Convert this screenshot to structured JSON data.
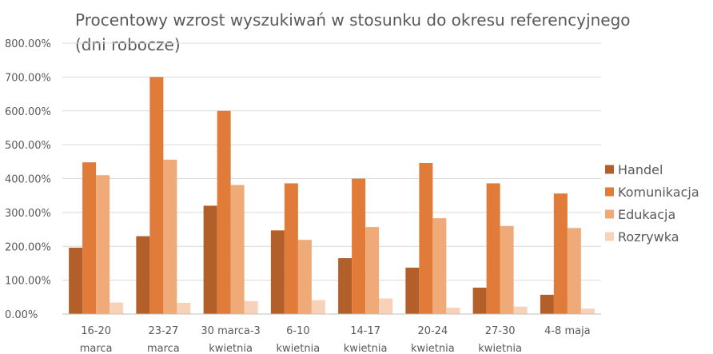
{
  "chart_data": {
    "type": "bar",
    "title_lines": [
      "Procentowy wzrost wyszukiwań w stosunku do okresu referencyjnego",
      "(dni robocze)"
    ],
    "categories": [
      [
        "16-20",
        "marca"
      ],
      [
        "23-27",
        "marca"
      ],
      [
        "30 marca-3",
        "kwietnia"
      ],
      [
        "6-10",
        "kwietnia"
      ],
      [
        "14-17",
        "kwietnia"
      ],
      [
        "20-24",
        "kwietnia"
      ],
      [
        "27-30",
        "kwietnia"
      ],
      [
        "4-8 maja"
      ]
    ],
    "y_ticks": [
      "0.00%",
      "100.00%",
      "200.00%",
      "300.00%",
      "400.00%",
      "500.00%",
      "600.00%",
      "700.00%",
      "800.00%"
    ],
    "ylim": [
      0,
      800
    ],
    "grid": true,
    "legend_position": "right",
    "series": [
      {
        "name": "Handel",
        "color": "#B35F2A",
        "values": [
          196,
          230,
          320,
          247,
          165,
          137,
          78,
          57
        ]
      },
      {
        "name": "Komunikacja",
        "color": "#E07B39",
        "values": [
          448,
          700,
          600,
          386,
          400,
          446,
          386,
          356
        ]
      },
      {
        "name": "Edukacja",
        "color": "#F0AA78",
        "values": [
          410,
          456,
          381,
          219,
          257,
          283,
          260,
          254
        ]
      },
      {
        "name": "Rozrywka",
        "color": "#F8D2B8",
        "values": [
          34,
          33,
          38,
          41,
          46,
          19,
          22,
          16
        ]
      }
    ]
  }
}
